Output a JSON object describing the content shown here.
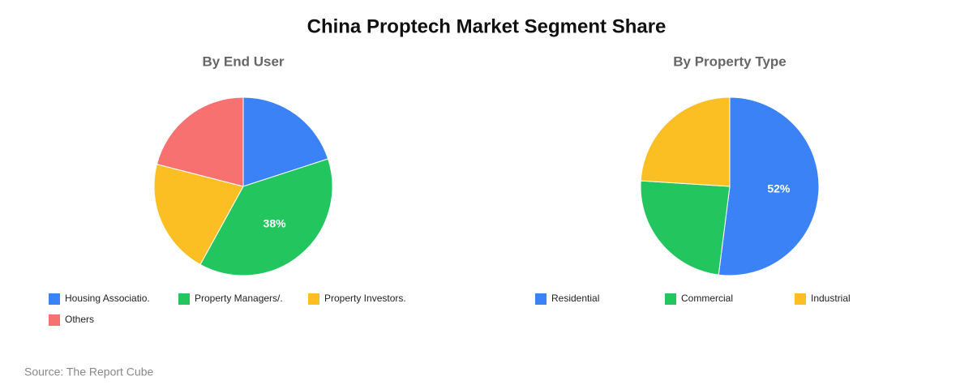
{
  "title": "China Proptech Market Segment Share",
  "source": "Source: The Report Cube",
  "chart_data": [
    {
      "type": "pie",
      "title": "By End User",
      "categories": [
        "Housing Associatio.",
        "Property Managers/.",
        "Property Investors.",
        "Others"
      ],
      "values": [
        20,
        38,
        21,
        21
      ],
      "value_labels": [
        null,
        "38%",
        null,
        null
      ],
      "colors": [
        "#3b82f6",
        "#22c55e",
        "#fbbf24",
        "#f87171"
      ]
    },
    {
      "type": "pie",
      "title": "By Property Type",
      "categories": [
        "Residential",
        "Commercial",
        "Industrial"
      ],
      "values": [
        52,
        24,
        24
      ],
      "value_labels": [
        "52%",
        null,
        null
      ],
      "colors": [
        "#3b82f6",
        "#22c55e",
        "#fbbf24"
      ]
    }
  ]
}
